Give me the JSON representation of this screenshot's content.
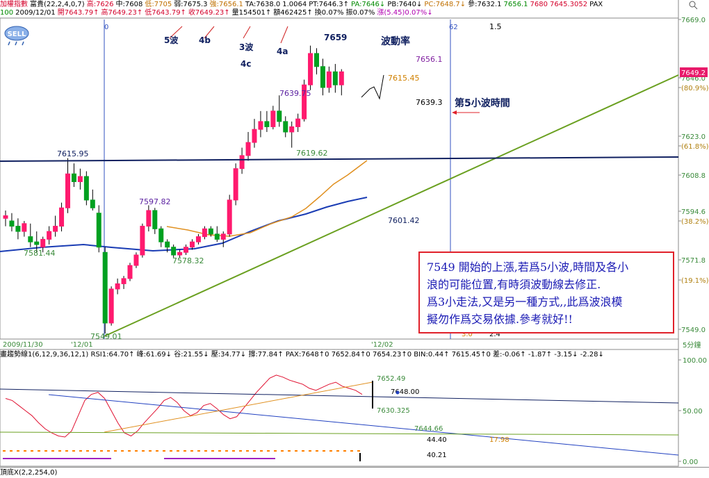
{
  "header": {
    "line1": [
      {
        "text": "加權指數",
        "cls": "red"
      },
      {
        "text": "富貴(22,2,4,0,7)",
        "cls": ""
      },
      {
        "text": "高:7626",
        "cls": "red"
      },
      {
        "text": "中:7608",
        "cls": ""
      },
      {
        "text": "低:7705",
        "cls": "org"
      },
      {
        "text": "弱:7675.3",
        "cls": ""
      },
      {
        "text": "強:7656.1",
        "cls": "org"
      },
      {
        "text": "TA:7638.0",
        "cls": ""
      },
      {
        "text": "1.0064",
        "cls": ""
      },
      {
        "text": "PT:7646.3↑",
        "cls": ""
      },
      {
        "text": "PA:7646↓",
        "cls": "grn"
      },
      {
        "text": "PB:7640↓",
        "cls": ""
      },
      {
        "text": "PC:7648.7↓",
        "cls": "org"
      },
      {
        "text": "參:7632.1",
        "cls": ""
      },
      {
        "text": "7656.1",
        "cls": "grn"
      },
      {
        "text": "7680",
        "cls": "red"
      },
      {
        "text": "7645.3052",
        "cls": "red"
      },
      {
        "text": "PAX",
        "cls": ""
      }
    ],
    "line2": [
      {
        "text": "100",
        "cls": "grn"
      },
      {
        "text": "2009/12/01",
        "cls": ""
      },
      {
        "text": "開7643.79↑",
        "cls": "red"
      },
      {
        "text": "高7649.23↑",
        "cls": "red"
      },
      {
        "text": "低7643.79↑",
        "cls": "red"
      },
      {
        "text": "收7649.23↑",
        "cls": "red"
      },
      {
        "text": "量154501↑",
        "cls": ""
      },
      {
        "text": "額462425↑",
        "cls": ""
      },
      {
        "text": "換0.07%",
        "cls": ""
      },
      {
        "text": "振0.07%",
        "cls": ""
      },
      {
        "text": "漲(5.45)0.07%↓",
        "cls": "mag"
      }
    ]
  },
  "logo_text": "SELL",
  "chart_data": {
    "type": "candlestick",
    "price_axis": {
      "labels": [
        "7669.0",
        "7646.0",
        "(80.9%)",
        "7623.0",
        "(61.8%)",
        "7608.8",
        "7594.6",
        "(38.2%)",
        "7571.8",
        "(19.1%)",
        "7549.0"
      ],
      "current": "7649.2"
    },
    "time_labels": [
      "2009/11/30",
      "'12/01",
      "'12/02"
    ],
    "vertical_marks": [
      "0",
      "62"
    ],
    "candles": [
      {
        "o": 7593,
        "h": 7596,
        "l": 7590,
        "c": 7594
      },
      {
        "o": 7592,
        "h": 7595,
        "l": 7588,
        "c": 7590
      },
      {
        "o": 7590,
        "h": 7593,
        "l": 7585,
        "c": 7588
      },
      {
        "o": 7588,
        "h": 7592,
        "l": 7586,
        "c": 7591
      },
      {
        "o": 7586,
        "h": 7591,
        "l": 7582,
        "c": 7584
      },
      {
        "o": 7584,
        "h": 7588,
        "l": 7580,
        "c": 7583
      },
      {
        "o": 7582,
        "h": 7586,
        "l": 7580,
        "c": 7585
      },
      {
        "o": 7585,
        "h": 7590,
        "l": 7583,
        "c": 7588
      },
      {
        "o": 7588,
        "h": 7594,
        "l": 7586,
        "c": 7590
      },
      {
        "o": 7590,
        "h": 7599,
        "l": 7588,
        "c": 7597
      },
      {
        "o": 7597,
        "h": 7616,
        "l": 7595,
        "c": 7610
      },
      {
        "o": 7610,
        "h": 7614,
        "l": 7605,
        "c": 7607
      },
      {
        "o": 7607,
        "h": 7612,
        "l": 7604,
        "c": 7609
      },
      {
        "o": 7609,
        "h": 7611,
        "l": 7598,
        "c": 7600
      },
      {
        "o": 7600,
        "h": 7604,
        "l": 7596,
        "c": 7597
      },
      {
        "o": 7595,
        "h": 7598,
        "l": 7580,
        "c": 7582
      },
      {
        "o": 7580,
        "h": 7582,
        "l": 7549,
        "c": 7553
      },
      {
        "o": 7553,
        "h": 7567,
        "l": 7552,
        "c": 7566
      },
      {
        "o": 7566,
        "h": 7570,
        "l": 7564,
        "c": 7568
      },
      {
        "o": 7568,
        "h": 7571,
        "l": 7566,
        "c": 7570
      },
      {
        "o": 7570,
        "h": 7576,
        "l": 7569,
        "c": 7575
      },
      {
        "o": 7575,
        "h": 7580,
        "l": 7574,
        "c": 7579
      },
      {
        "o": 7579,
        "h": 7591,
        "l": 7578,
        "c": 7590
      },
      {
        "o": 7590,
        "h": 7598,
        "l": 7588,
        "c": 7596
      },
      {
        "o": 7596,
        "h": 7597,
        "l": 7587,
        "c": 7589
      },
      {
        "o": 7589,
        "h": 7590,
        "l": 7582,
        "c": 7584
      },
      {
        "o": 7584,
        "h": 7585,
        "l": 7580,
        "c": 7582
      },
      {
        "o": 7582,
        "h": 7583,
        "l": 7578,
        "c": 7579
      },
      {
        "o": 7579,
        "h": 7581,
        "l": 7578,
        "c": 7580
      },
      {
        "o": 7580,
        "h": 7583,
        "l": 7579,
        "c": 7582
      },
      {
        "o": 7582,
        "h": 7585,
        "l": 7581,
        "c": 7584
      },
      {
        "o": 7584,
        "h": 7587,
        "l": 7583,
        "c": 7586
      },
      {
        "o": 7586,
        "h": 7590,
        "l": 7585,
        "c": 7589
      },
      {
        "o": 7589,
        "h": 7590,
        "l": 7586,
        "c": 7587
      },
      {
        "o": 7587,
        "h": 7590,
        "l": 7584,
        "c": 7585
      },
      {
        "o": 7585,
        "h": 7588,
        "l": 7582,
        "c": 7587
      },
      {
        "o": 7587,
        "h": 7602,
        "l": 7586,
        "c": 7600
      },
      {
        "o": 7600,
        "h": 7614,
        "l": 7598,
        "c": 7612
      },
      {
        "o": 7612,
        "h": 7620,
        "l": 7610,
        "c": 7617
      },
      {
        "o": 7617,
        "h": 7626,
        "l": 7615,
        "c": 7622
      },
      {
        "o": 7622,
        "h": 7631,
        "l": 7620,
        "c": 7627
      },
      {
        "o": 7627,
        "h": 7634,
        "l": 7624,
        "c": 7630
      },
      {
        "o": 7630,
        "h": 7634,
        "l": 7626,
        "c": 7628
      },
      {
        "o": 7628,
        "h": 7636,
        "l": 7627,
        "c": 7634
      },
      {
        "o": 7634,
        "h": 7640,
        "l": 7628,
        "c": 7630
      },
      {
        "o": 7630,
        "h": 7632,
        "l": 7624,
        "c": 7626
      },
      {
        "o": 7626,
        "h": 7630,
        "l": 7620,
        "c": 7628
      },
      {
        "o": 7628,
        "h": 7633,
        "l": 7626,
        "c": 7631
      },
      {
        "o": 7631,
        "h": 7646,
        "l": 7630,
        "c": 7644
      },
      {
        "o": 7644,
        "h": 7659,
        "l": 7642,
        "c": 7656
      },
      {
        "o": 7656,
        "h": 7658,
        "l": 7648,
        "c": 7651
      },
      {
        "o": 7651,
        "h": 7654,
        "l": 7640,
        "c": 7643
      },
      {
        "o": 7643,
        "h": 7651,
        "l": 7641,
        "c": 7649
      },
      {
        "o": 7649,
        "h": 7652,
        "l": 7641,
        "c": 7644
      },
      {
        "o": 7644,
        "h": 7650,
        "l": 7640,
        "c": 7649
      }
    ],
    "annotations": [
      "5波",
      "4b",
      "3波",
      "4c",
      "4a",
      "7659",
      "波動率",
      "1.5",
      "7656.1",
      "7615.45",
      "7639.3",
      "第5小波時間",
      "7615.95",
      "7639.75",
      "7619.62",
      "7597.82",
      "7581.44",
      "7578.32",
      "7601.42",
      "7549.01",
      "3.0",
      "2.4"
    ],
    "indicator": {
      "header": "畫趨勢線1(6,12,9,36,12,1) RSI1:64.70↑ 峰:61.69↓ 谷:21.55↓ 壓:34.77↓ 撐:77.84↑ PAX:7648↑0 7652.84↑0 7654.23↑0 BIN:0.44↑ 7615.45↑0 差:-0.06↑ -1.87↑ -3.15↓ -2.28↓",
      "axis_labels": [
        "100.00",
        "50.00",
        "0.00"
      ],
      "labels": [
        "7652.49",
        "7648.00",
        "7630.325",
        "7644.66",
        "44.40",
        "17.98",
        "40.21"
      ],
      "rsi": [
        62,
        60,
        55,
        50,
        45,
        38,
        32,
        28,
        25,
        24,
        30,
        45,
        60,
        66,
        68,
        62,
        50,
        38,
        28,
        25,
        30,
        38,
        45,
        52,
        60,
        63,
        58,
        50,
        45,
        48,
        55,
        57,
        52,
        46,
        42,
        44,
        52,
        60,
        68,
        75,
        82,
        85,
        83,
        80,
        78,
        76,
        72,
        70,
        73,
        76,
        78,
        74,
        72,
        70,
        66
      ]
    },
    "bottom_label": "頂底X(2,2,254,0)",
    "interval": "5分鐘"
  },
  "note_lines": [
    "7549 開始的上漲,若爲5小波,時間及各小",
    "浪的可能位置,有時須波動線去修正.",
    "爲3小走法,又是另一種方式,,此爲波浪模",
    "擬勿作爲交易依據.參考就好!!"
  ],
  "colors": {
    "up": "#ff1a6e",
    "down": "#00a020",
    "trend": "#6aa020",
    "ma_blue": "#1a3cb4",
    "ma_orange": "#e09020",
    "navy": "#102060"
  }
}
